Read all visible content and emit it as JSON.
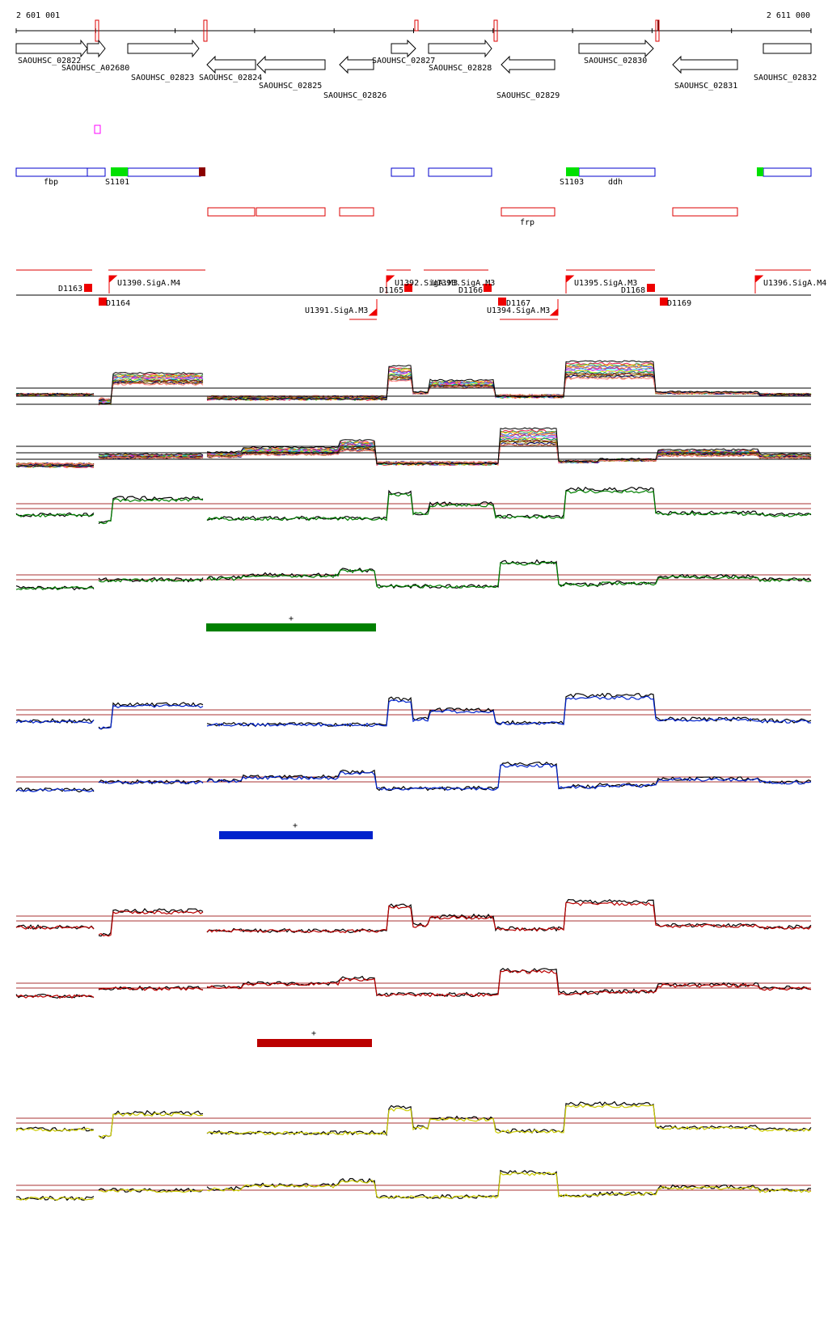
{
  "coordinates": {
    "start_label": "2 601 001",
    "end_label": "2 611 000"
  },
  "colors": {
    "gene_outline": "#000000",
    "feature_blue": "#0000cc",
    "feature_green": "#00e000",
    "feature_red": "#dd0000",
    "feature_darkred": "#8b0000",
    "magenta": "#ff00ff",
    "track_green": "#008000",
    "track_blue": "#0022cc",
    "track_red": "#bb0000",
    "track_yellow": "#cccc00",
    "threshold": "#aa3333"
  },
  "genes": [
    {
      "name": "SAOUHSC_02822",
      "strand": "+"
    },
    {
      "name": "SAOUHSC_A02680",
      "strand": "+"
    },
    {
      "name": "SAOUHSC_02823",
      "strand": "+"
    },
    {
      "name": "SAOUHSC_02824",
      "strand": "-"
    },
    {
      "name": "SAOUHSC_02825",
      "strand": "-"
    },
    {
      "name": "SAOUHSC_02826",
      "strand": "-"
    },
    {
      "name": "SAOUHSC_02827",
      "strand": "+"
    },
    {
      "name": "SAOUHSC_02828",
      "strand": "+"
    },
    {
      "name": "SAOUHSC_02829",
      "strand": "-"
    },
    {
      "name": "SAOUHSC_02830",
      "strand": "+"
    },
    {
      "name": "SAOUHSC_02831",
      "strand": "-"
    },
    {
      "name": "SAOUHSC_02832",
      "strand": "+"
    }
  ],
  "annotations": {
    "labels": [
      "fbp",
      "S1101",
      "S1103",
      "ddh",
      "frp"
    ]
  },
  "promoters_down": [
    "D1163",
    "D1164",
    "D1165",
    "D1166",
    "D1167",
    "D1168",
    "D1169"
  ],
  "promoters_up": [
    "U1390.SigA.M4",
    "U1391.SigA.M3",
    "U1392.SigA.M3",
    "U1393.SigA.M3",
    "U1394.SigA.M3",
    "U1395.SigA.M3",
    "U1396.SigA.M4"
  ],
  "condition_markers": [
    {
      "label": "+",
      "color": "#008000"
    },
    {
      "label": "+",
      "color": "#0022cc"
    },
    {
      "label": "+",
      "color": "#bb0000"
    }
  ]
}
